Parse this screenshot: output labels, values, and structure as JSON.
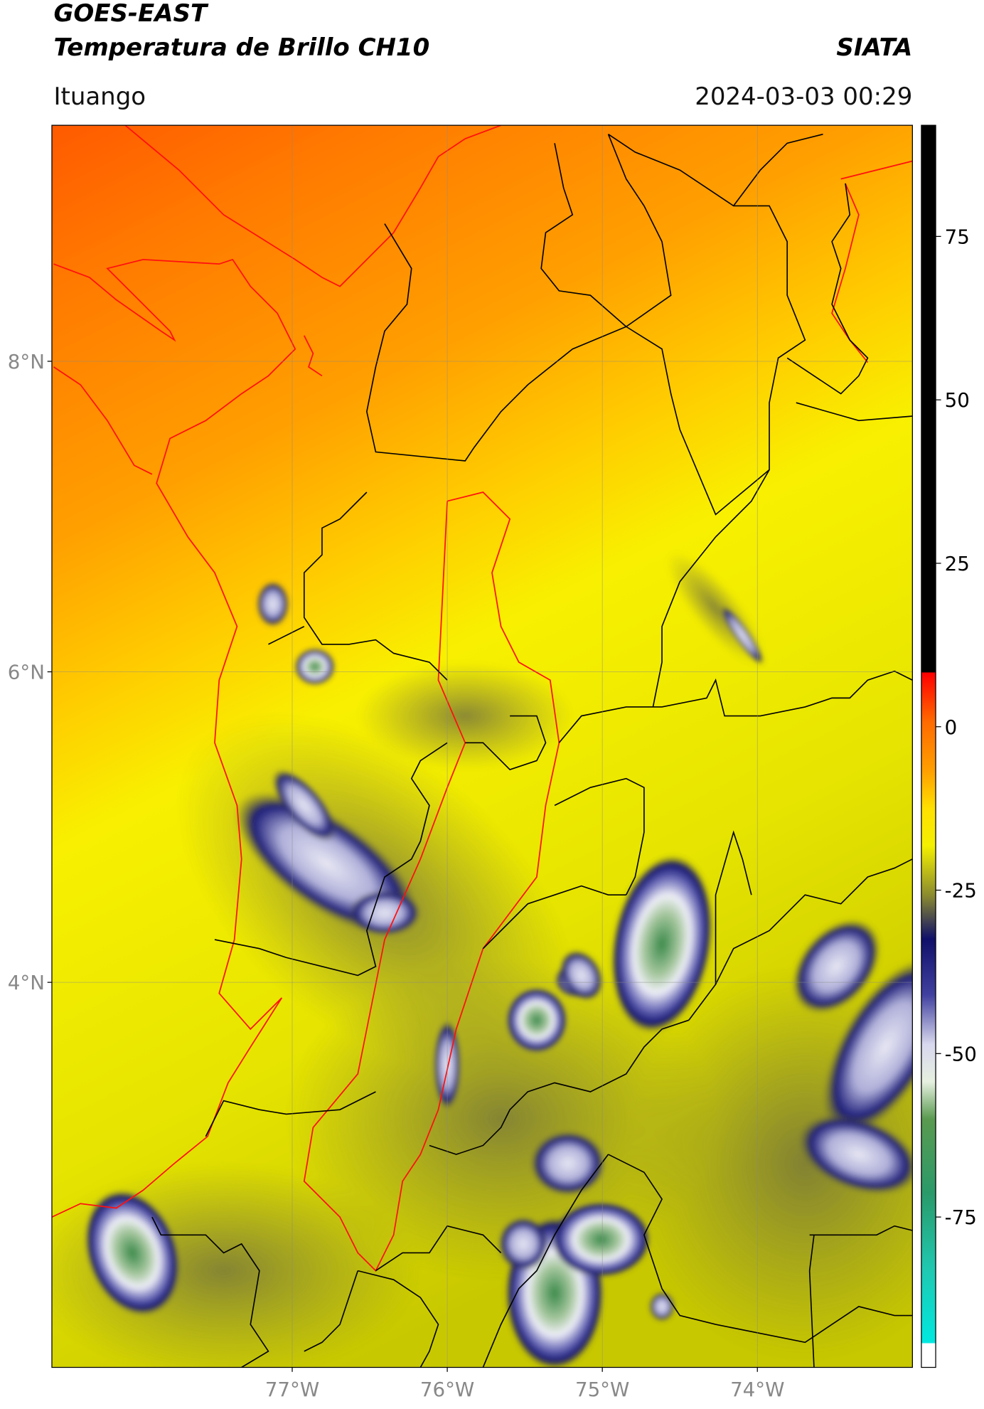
{
  "header": {
    "title": "GOES-EAST",
    "subtitle": "Temperatura de Brillo CH10",
    "agency": "SIATA",
    "location": "Ituango",
    "timestamp": "2024-03-03 00:29"
  },
  "map": {
    "xlim": [
      -78.55,
      -73.0
    ],
    "ylim": [
      1.52,
      9.52
    ],
    "xticks": [
      {
        "value": -77,
        "label": "77°W"
      },
      {
        "value": -76,
        "label": "76°W"
      },
      {
        "value": -75,
        "label": "75°W"
      },
      {
        "value": -74,
        "label": "74°W"
      }
    ],
    "yticks": [
      {
        "value": 8,
        "label": "8°N"
      },
      {
        "value": 6,
        "label": "6°N"
      },
      {
        "value": 4,
        "label": "4°N"
      }
    ],
    "grid": true
  },
  "colorbar": {
    "ylim": [
      -98,
      92
    ],
    "yticks": [
      75,
      50,
      25,
      0,
      -25,
      -50,
      -75
    ]
  }
}
